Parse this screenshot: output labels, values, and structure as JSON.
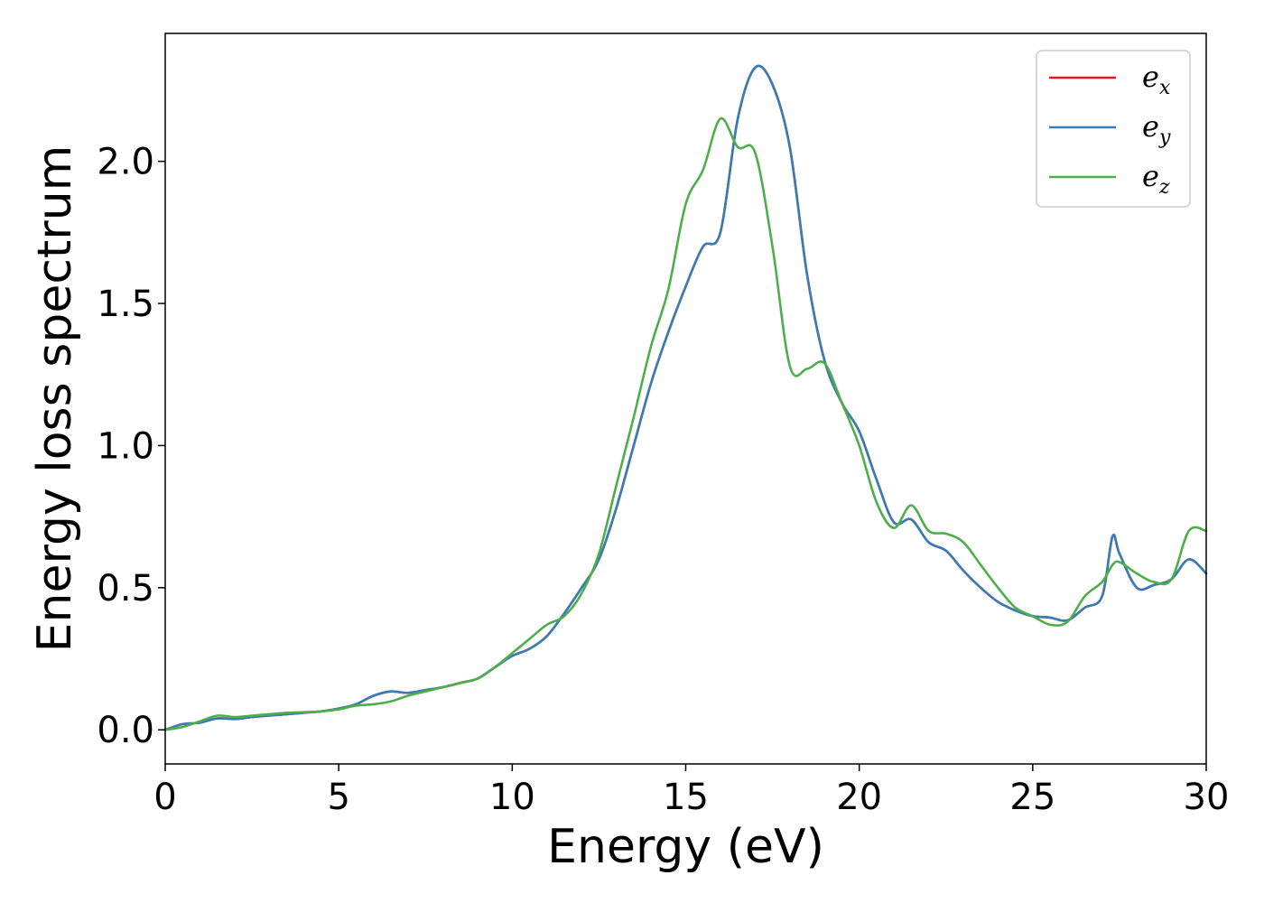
{
  "chart_data": {
    "type": "line",
    "title": "",
    "xlabel": "Energy (eV)",
    "ylabel": "Energy loss spectrum",
    "xlim": [
      0,
      30
    ],
    "ylim": [
      -0.12,
      2.45
    ],
    "grid": false,
    "legend_position": "top-right",
    "x_ticks": [
      {
        "value": 0,
        "label": "0"
      },
      {
        "value": 5,
        "label": "5"
      },
      {
        "value": 10,
        "label": "10"
      },
      {
        "value": 15,
        "label": "15"
      },
      {
        "value": 20,
        "label": "20"
      },
      {
        "value": 25,
        "label": "25"
      },
      {
        "value": 30,
        "label": "30"
      }
    ],
    "y_ticks": [
      {
        "value": 0.0,
        "label": "0.0"
      },
      {
        "value": 0.5,
        "label": "0.5"
      },
      {
        "value": 1.0,
        "label": "1.0"
      },
      {
        "value": 1.5,
        "label": "1.5"
      },
      {
        "value": 2.0,
        "label": "2.0"
      }
    ],
    "x": [
      0,
      0.5,
      1,
      1.5,
      2,
      2.5,
      3,
      3.5,
      4,
      4.5,
      5,
      5.5,
      6,
      6.5,
      7,
      7.5,
      8,
      8.5,
      9,
      9.5,
      10,
      10.5,
      11,
      11.5,
      12,
      12.5,
      13,
      13.5,
      14,
      14.5,
      15,
      15.5,
      16,
      16.5,
      17,
      17.5,
      18,
      18.5,
      19,
      19.5,
      20,
      20.5,
      21,
      21.5,
      22,
      22.5,
      23,
      23.5,
      24,
      24.5,
      25,
      25.5,
      26,
      26.5,
      27,
      27.3,
      27.5,
      28,
      28.5,
      29,
      29.5,
      30
    ],
    "series": [
      {
        "name": "e_x",
        "color": "#e41a1c",
        "values": [
          0,
          0.02,
          0.025,
          0.04,
          0.038,
          0.045,
          0.05,
          0.055,
          0.06,
          0.065,
          0.075,
          0.09,
          0.12,
          0.135,
          0.13,
          0.14,
          0.15,
          0.165,
          0.18,
          0.22,
          0.26,
          0.285,
          0.33,
          0.41,
          0.5,
          0.6,
          0.78,
          1.0,
          1.22,
          1.4,
          1.56,
          1.7,
          1.75,
          2.15,
          2.33,
          2.27,
          2.05,
          1.6,
          1.3,
          1.15,
          1.05,
          0.88,
          0.73,
          0.74,
          0.66,
          0.63,
          0.56,
          0.5,
          0.45,
          0.42,
          0.4,
          0.395,
          0.385,
          0.43,
          0.47,
          0.68,
          0.62,
          0.5,
          0.51,
          0.53,
          0.6,
          0.55
        ]
      },
      {
        "name": "e_y",
        "color": "#377eb8",
        "values": [
          0,
          0.02,
          0.025,
          0.04,
          0.038,
          0.045,
          0.05,
          0.055,
          0.06,
          0.065,
          0.075,
          0.09,
          0.12,
          0.135,
          0.13,
          0.14,
          0.15,
          0.165,
          0.18,
          0.22,
          0.26,
          0.285,
          0.33,
          0.41,
          0.5,
          0.6,
          0.78,
          1.0,
          1.22,
          1.4,
          1.56,
          1.7,
          1.75,
          2.15,
          2.33,
          2.27,
          2.05,
          1.6,
          1.3,
          1.15,
          1.05,
          0.88,
          0.73,
          0.74,
          0.66,
          0.63,
          0.56,
          0.5,
          0.45,
          0.42,
          0.4,
          0.395,
          0.385,
          0.43,
          0.47,
          0.68,
          0.62,
          0.5,
          0.51,
          0.53,
          0.6,
          0.55
        ]
      },
      {
        "name": "e_z",
        "color": "#4daf4a",
        "values": [
          0,
          0.01,
          0.03,
          0.05,
          0.045,
          0.05,
          0.055,
          0.06,
          0.062,
          0.065,
          0.072,
          0.085,
          0.09,
          0.1,
          0.12,
          0.135,
          0.15,
          0.165,
          0.18,
          0.22,
          0.27,
          0.32,
          0.37,
          0.4,
          0.48,
          0.62,
          0.86,
          1.1,
          1.35,
          1.55,
          1.85,
          1.97,
          2.15,
          2.05,
          2.03,
          1.7,
          1.28,
          1.27,
          1.29,
          1.15,
          1.0,
          0.8,
          0.71,
          0.79,
          0.7,
          0.69,
          0.66,
          0.58,
          0.5,
          0.43,
          0.4,
          0.37,
          0.38,
          0.47,
          0.52,
          0.58,
          0.59,
          0.55,
          0.52,
          0.53,
          0.7,
          0.7
        ]
      }
    ],
    "legend": [
      {
        "series": "e_x",
        "base": "e",
        "sub": "x"
      },
      {
        "series": "e_y",
        "base": "e",
        "sub": "y"
      },
      {
        "series": "e_z",
        "base": "e",
        "sub": "z"
      }
    ]
  }
}
